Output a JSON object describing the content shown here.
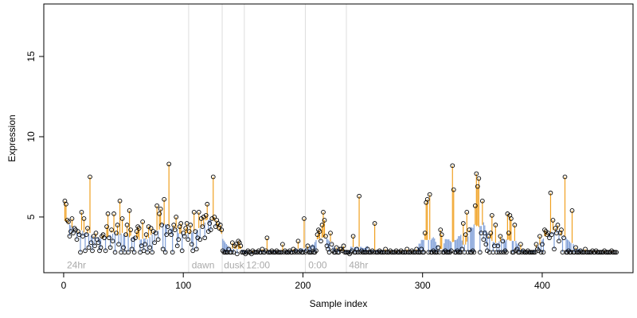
{
  "chart_data": {
    "type": "lollipop",
    "xlabel": "Sample index",
    "ylabel": "Expression",
    "xlim": [
      -16.6,
      475.9
    ],
    "ylim": [
      1.53,
      18.27
    ],
    "xticks": [
      0,
      100,
      200,
      300,
      400
    ],
    "yticks": [
      5,
      10,
      15
    ],
    "point_color": "#000000",
    "above_color": "#f0a020",
    "below_color": "#7f9fd8",
    "vlines": [
      104.5,
      132.5,
      151,
      202,
      236.3
    ],
    "annotations": [
      {
        "text": "24hr",
        "x": 2.7,
        "y": 2.0
      },
      {
        "text": "dawn",
        "x": 107,
        "y": 2.0
      },
      {
        "text": "dusk",
        "x": 134,
        "y": 2.0
      },
      {
        "text": "12:00",
        "x": 152.5,
        "y": 2.0
      },
      {
        "text": "0:00",
        "x": 204.5,
        "y": 2.0
      },
      {
        "text": "48hr",
        "x": 238.5,
        "y": 2.0
      }
    ],
    "values": [
      6.0,
      5.8,
      4.8,
      4.7,
      3.8,
      4.1,
      4.9,
      4.0,
      4.3,
      4.2,
      3.6,
      4.1,
      3.9,
      2.8,
      5.3,
      3.8,
      4.9,
      2.9,
      3.9,
      4.3,
      3.1,
      7.5,
      3.4,
      2.9,
      3.8,
      3.2,
      4.0,
      3.6,
      3.4,
      2.9,
      3.1,
      3.8,
      3.9,
      3.7,
      2.9,
      4.4,
      5.2,
      3.7,
      3.1,
      4.2,
      3.5,
      5.2,
      2.8,
      4.0,
      4.5,
      3.3,
      6.0,
      2.8,
      4.9,
      3.1,
      2.8,
      3.9,
      4.5,
      2.8,
      5.4,
      4.2,
      3.0,
      3.6,
      2.8,
      3.7,
      4.1,
      4.4,
      4.3,
      2.8,
      3.2,
      4.7,
      2.9,
      3.3,
      3.9,
      2.8,
      4.4,
      3.1,
      4.3,
      2.8,
      4.1,
      3.4,
      4.0,
      5.7,
      3.6,
      5.2,
      5.5,
      4.5,
      3.0,
      6.1,
      2.8,
      3.9,
      4.4,
      8.3,
      4.1,
      3.9,
      2.8,
      4.5,
      4.2,
      5.0,
      3.2,
      3.6,
      4.4,
      4.6,
      2.9,
      4.0,
      3.8,
      4.3,
      4.6,
      3.6,
      4.1,
      4.5,
      3.3,
      2.9,
      5.3,
      4.1,
      3.0,
      3.7,
      5.3,
      3.6,
      4.9,
      4.4,
      5.0,
      3.7,
      5.1,
      5.8,
      4.1,
      4.6,
      4.2,
      4.9,
      7.5,
      5.0,
      4.4,
      4.8,
      4.6,
      4.3,
      4.5,
      4.2,
      2.9,
      2.8,
      2.8,
      2.8,
      2.8,
      3.0,
      2.8,
      2.8,
      3.4,
      2.8,
      3.2,
      3.3,
      2.7,
      3.5,
      3.4,
      3.2,
      2.8,
      2.8,
      2.8,
      2.7,
      2.8,
      2.9,
      2.8,
      2.8,
      2.7,
      2.9,
      2.8,
      2.8,
      2.8,
      2.8,
      2.9,
      2.8,
      2.8,
      3.0,
      2.8,
      2.8,
      2.9,
      3.7,
      2.8,
      2.8,
      2.8,
      2.9,
      2.8,
      2.8,
      2.8,
      2.9,
      2.8,
      2.8,
      2.8,
      2.8,
      3.3,
      2.8,
      2.9,
      2.8,
      2.8,
      2.8,
      2.9,
      2.8,
      2.8,
      3.0,
      2.8,
      2.9,
      2.8,
      3.5,
      2.8,
      2.9,
      2.8,
      2.8,
      4.9,
      2.8,
      2.9,
      3.2,
      2.8,
      2.8,
      2.8,
      3.1,
      2.8,
      2.8,
      2.9,
      3.9,
      4.2,
      4.1,
      3.5,
      4.5,
      5.3,
      4.8,
      3.8,
      3.2,
      3.0,
      2.8,
      4.0,
      3.3,
      2.9,
      2.8,
      2.8,
      3.1,
      2.8,
      2.8,
      3.0,
      3.0,
      2.9,
      3.2,
      2.8,
      2.8,
      2.8,
      2.8,
      2.7,
      2.8,
      2.9,
      3.8,
      2.8,
      2.8,
      3.0,
      2.8,
      6.3,
      2.8,
      2.9,
      2.8,
      2.8,
      2.8,
      2.8,
      3.0,
      2.8,
      2.8,
      2.8,
      2.9,
      2.8,
      4.6,
      2.8,
      2.8,
      2.8,
      2.9,
      2.8,
      2.8,
      2.8,
      2.8,
      3.0,
      2.8,
      2.8,
      2.8,
      2.9,
      2.8,
      2.8,
      2.8,
      2.8,
      2.9,
      2.8,
      2.8,
      2.8,
      2.9,
      2.8,
      2.8,
      2.8,
      2.8,
      3.0,
      2.8,
      2.8,
      2.8,
      2.9,
      2.8,
      2.8,
      2.8,
      3.0,
      2.8,
      2.8,
      2.8,
      3.0,
      2.8,
      2.8,
      4.0,
      5.9,
      6.1,
      2.8,
      6.4,
      2.8,
      2.8,
      2.9,
      2.8,
      2.8,
      2.8,
      3.1,
      2.8,
      4.2,
      3.9,
      2.8,
      2.8,
      2.9,
      2.8,
      2.8,
      2.8,
      2.8,
      2.9,
      8.2,
      6.7,
      2.8,
      2.8,
      2.9,
      2.8,
      2.8,
      2.8,
      3.0,
      4.6,
      2.8,
      3.9,
      5.3,
      2.8,
      4.2,
      2.8,
      2.8,
      2.9,
      2.8,
      5.7,
      7.7,
      6.9,
      7.4,
      2.8,
      4.0,
      6.0,
      3.6,
      4.0,
      3.3,
      2.9,
      3.8,
      2.8,
      4.0,
      5.1,
      2.8,
      3.2,
      4.5,
      2.8,
      3.2,
      2.8,
      3.8,
      2.8,
      3.5,
      2.8,
      2.9,
      2.8,
      5.2,
      4.0,
      5.1,
      4.9,
      2.8,
      2.8,
      4.5,
      2.9,
      3.0,
      2.8,
      2.8,
      3.3,
      2.8,
      2.9,
      2.8,
      2.8,
      2.8,
      2.9,
      2.8,
      2.8,
      2.8,
      2.8,
      2.8,
      2.8,
      3.3,
      3.0,
      2.9,
      3.8,
      2.8,
      3.3,
      2.8,
      4.2,
      4.1,
      3.9,
      4.0,
      3.7,
      6.5,
      3.9,
      4.8,
      3.0,
      4.3,
      4.0,
      4.5,
      3.5,
      4.0,
      4.2,
      2.8,
      3.7,
      7.5,
      2.8,
      2.8,
      2.9,
      2.8,
      2.8,
      5.4,
      2.8,
      2.8,
      3.1,
      2.8,
      2.8,
      2.8,
      2.9,
      2.8,
      2.8,
      2.8,
      3.0,
      2.8,
      2.8,
      2.8,
      2.8,
      2.8,
      2.9,
      2.8,
      2.8,
      2.9,
      2.8,
      2.8,
      2.8,
      2.8,
      2.8,
      2.8,
      2.9,
      2.8,
      2.8,
      2.8,
      2.8,
      2.8,
      2.9,
      2.8,
      2.8,
      2.8,
      2.8
    ]
  }
}
